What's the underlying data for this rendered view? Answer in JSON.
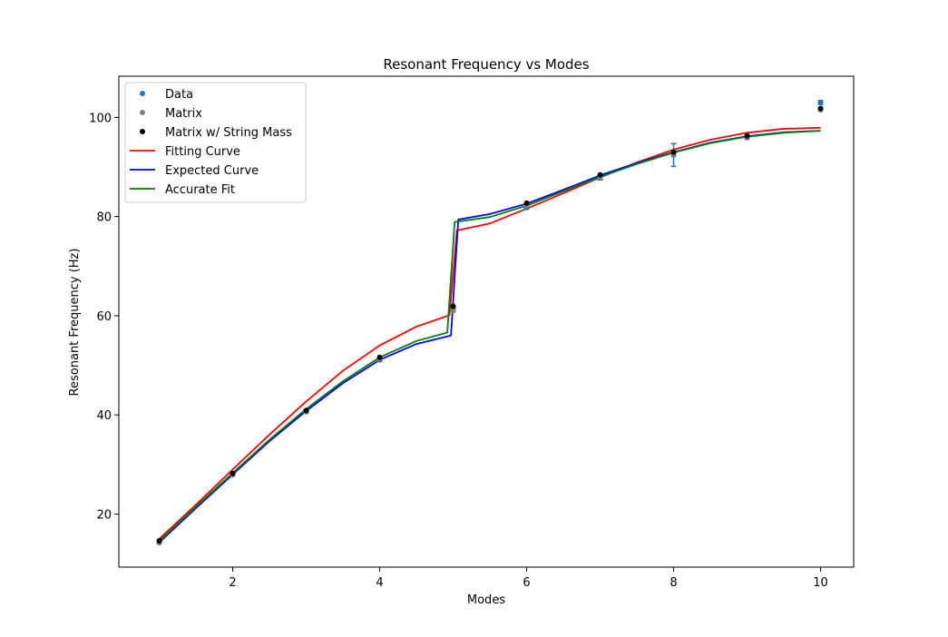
{
  "chart_data": {
    "type": "line",
    "title": "Resonant Frequency vs Modes",
    "xlabel": "Modes",
    "ylabel": "Resonant Frequency (Hz)",
    "xlim": [
      0.45,
      10.45
    ],
    "ylim": [
      9.3,
      108.3
    ],
    "xticks": [
      2,
      4,
      6,
      8,
      10
    ],
    "yticks": [
      20,
      40,
      60,
      80,
      100
    ],
    "grid": false,
    "legend_position": "top-left",
    "scatter_series": [
      {
        "name": "Data",
        "color": "#1f77b4",
        "x": [
          1,
          2,
          3,
          4,
          5,
          6,
          7,
          8,
          9,
          10
        ],
        "y": [
          14.4,
          28.1,
          40.7,
          51.1,
          61.4,
          81.8,
          87.8,
          92.4,
          95.9,
          103.0
        ],
        "yerr": [
          0.2,
          0.3,
          0.3,
          0.3,
          0.4,
          0.3,
          0.4,
          2.3,
          0.3,
          0.4
        ]
      },
      {
        "name": "Matrix",
        "color": "#808080",
        "x": [
          1,
          2,
          3,
          4,
          5,
          6,
          7,
          8,
          9,
          10
        ],
        "y": [
          14.2,
          27.9,
          40.6,
          51.3,
          61.0,
          82.2,
          87.9,
          92.6,
          96.0,
          101.5
        ]
      },
      {
        "name": "Matrix w/ String Mass",
        "color": "#000000",
        "x": [
          1,
          2,
          3,
          4,
          5,
          6,
          7,
          8,
          9,
          10
        ],
        "y": [
          14.6,
          28.2,
          40.9,
          51.6,
          61.9,
          82.7,
          88.4,
          93.0,
          96.3,
          101.8
        ]
      }
    ],
    "line_series": [
      {
        "name": "Fitting Curve",
        "color": "#ff0000",
        "x": [
          1,
          1.5,
          2,
          2.5,
          3,
          3.5,
          4,
          4.5,
          4.95,
          5.05,
          5.5,
          6,
          6.5,
          7,
          7.5,
          8,
          8.5,
          9,
          9.5,
          10
        ],
        "y": [
          15.0,
          21.9,
          29.0,
          36.0,
          42.7,
          48.9,
          54.0,
          57.8,
          60.1,
          77.2,
          78.6,
          81.6,
          84.7,
          87.9,
          90.9,
          93.5,
          95.5,
          96.9,
          97.7,
          97.9
        ]
      },
      {
        "name": "Expected Curve",
        "color": "#0000ff",
        "x": [
          1,
          1.5,
          2,
          2.5,
          3,
          3.5,
          4,
          4.5,
          4.97,
          5.07,
          5.5,
          6,
          6.5,
          7,
          7.5,
          8,
          8.5,
          9,
          9.5,
          10
        ],
        "y": [
          14.3,
          21.2,
          28.0,
          34.7,
          40.8,
          46.4,
          51.1,
          54.3,
          56.0,
          79.4,
          80.5,
          82.6,
          85.4,
          88.3,
          90.8,
          93.0,
          94.9,
          96.2,
          97.0,
          97.3
        ]
      },
      {
        "name": "Accurate Fit",
        "color": "#008000",
        "x": [
          1,
          1.5,
          2,
          2.5,
          3,
          3.5,
          4,
          4.5,
          4.92,
          5.02,
          5.5,
          6,
          6.5,
          7,
          7.5,
          8,
          8.5,
          9,
          9.5,
          10
        ],
        "y": [
          14.6,
          21.5,
          28.3,
          35.0,
          41.2,
          46.8,
          51.6,
          54.9,
          56.6,
          78.9,
          79.9,
          82.2,
          85.1,
          88.0,
          90.6,
          92.9,
          94.8,
          96.1,
          96.9,
          97.3
        ]
      }
    ]
  }
}
